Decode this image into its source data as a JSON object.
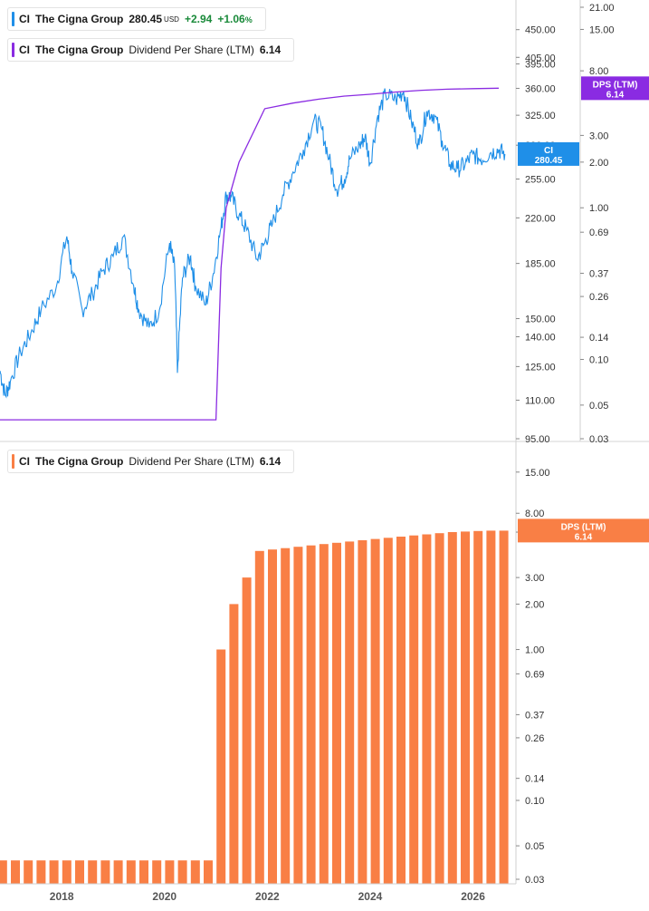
{
  "legend_price": {
    "ticker": "CI",
    "name": "The Cigna Group",
    "price": "280.45",
    "currency": "USD",
    "change": "+2.94",
    "change_pct": "+1.06",
    "pct_sign": "%",
    "color": "#1f8fe8"
  },
  "legend_dps": {
    "ticker": "CI",
    "name": "The Cigna Group",
    "metric": "Dividend Per Share (LTM)",
    "value": "6.14",
    "color": "#8a2be2"
  },
  "legend_dps_bars": {
    "ticker": "CI",
    "name": "The Cigna Group",
    "metric": "Dividend Per Share (LTM)",
    "value": "6.14",
    "color": "#f97f45"
  },
  "chart_data": [
    {
      "type": "line",
      "title": "",
      "xlabel": "",
      "ylabel": "",
      "x_tick_labels": [
        "2018",
        "2020",
        "2022",
        "2024",
        "2026"
      ],
      "xlim": [
        2016.8,
        2026.8
      ],
      "price_axis": {
        "scale": "log",
        "ylim": [
          95,
          490
        ],
        "ticks": [
          "95.00",
          "110.00",
          "125.00",
          "140.00",
          "150.00",
          "185.00",
          "220.00",
          "255.00",
          "290.00",
          "325.00",
          "360.00",
          "395.00",
          "405.00",
          "450.00"
        ]
      },
      "dps_axis": {
        "scale": "log",
        "ylim": [
          0.03,
          21
        ],
        "ticks": [
          "0.03",
          "0.05",
          "0.10",
          "0.14",
          "0.26",
          "0.37",
          "0.69",
          "1.00",
          "2.00",
          "3.00",
          "8.00",
          "15.00",
          "21.00"
        ]
      },
      "series": [
        {
          "name": "CI",
          "axis": "price",
          "color": "#1f8fe8",
          "last_label": "CI",
          "last_value": "280.45",
          "points": [
            [
              2016.8,
              123
            ],
            [
              2016.9,
              112
            ],
            [
              2017.0,
              118
            ],
            [
              2017.2,
              132
            ],
            [
              2017.4,
              142
            ],
            [
              2017.6,
              155
            ],
            [
              2017.9,
              170
            ],
            [
              2018.1,
              205
            ],
            [
              2018.2,
              180
            ],
            [
              2018.4,
              155
            ],
            [
              2018.6,
              165
            ],
            [
              2018.8,
              180
            ],
            [
              2019.0,
              190
            ],
            [
              2019.2,
              205
            ],
            [
              2019.4,
              170
            ],
            [
              2019.5,
              155
            ],
            [
              2019.7,
              145
            ],
            [
              2019.9,
              155
            ],
            [
              2020.1,
              200
            ],
            [
              2020.2,
              180
            ],
            [
              2020.25,
              122
            ],
            [
              2020.35,
              175
            ],
            [
              2020.5,
              190
            ],
            [
              2020.6,
              170
            ],
            [
              2020.8,
              158
            ],
            [
              2020.95,
              178
            ],
            [
              2021.1,
              212
            ],
            [
              2021.2,
              240
            ],
            [
              2021.3,
              238
            ],
            [
              2021.45,
              222
            ],
            [
              2021.6,
              210
            ],
            [
              2021.8,
              188
            ],
            [
              2021.95,
              200
            ],
            [
              2022.1,
              215
            ],
            [
              2022.3,
              240
            ],
            [
              2022.5,
              262
            ],
            [
              2022.7,
              285
            ],
            [
              2022.9,
              318
            ],
            [
              2023.05,
              310
            ],
            [
              2023.2,
              275
            ],
            [
              2023.35,
              245
            ],
            [
              2023.5,
              255
            ],
            [
              2023.6,
              275
            ],
            [
              2023.8,
              290
            ],
            [
              2023.9,
              300
            ],
            [
              2024.0,
              270
            ],
            [
              2024.15,
              325
            ],
            [
              2024.3,
              352
            ],
            [
              2024.5,
              345
            ],
            [
              2024.65,
              356
            ],
            [
              2024.8,
              318
            ],
            [
              2024.95,
              290
            ],
            [
              2025.1,
              330
            ],
            [
              2025.25,
              325
            ],
            [
              2025.4,
              295
            ],
            [
              2025.55,
              270
            ],
            [
              2025.7,
              265
            ],
            [
              2025.85,
              270
            ],
            [
              2026.0,
              280
            ],
            [
              2026.15,
              275
            ],
            [
              2026.35,
              282
            ],
            [
              2026.5,
              285
            ],
            [
              2026.62,
              280.45
            ]
          ]
        },
        {
          "name": "DPS (LTM)",
          "axis": "dps",
          "color": "#8a2be2",
          "last_label": "DPS (LTM)",
          "last_value": "6.14",
          "points": [
            [
              2016.8,
              0.04
            ],
            [
              2021.0,
              0.04
            ],
            [
              2021.1,
              0.4
            ],
            [
              2021.2,
              1.0
            ],
            [
              2021.45,
              2.0
            ],
            [
              2021.7,
              3.0
            ],
            [
              2021.95,
              4.5
            ],
            [
              2022.5,
              4.9
            ],
            [
              2023.0,
              5.2
            ],
            [
              2023.5,
              5.45
            ],
            [
              2024.0,
              5.6
            ],
            [
              2024.5,
              5.8
            ],
            [
              2025.0,
              5.95
            ],
            [
              2025.5,
              6.05
            ],
            [
              2026.0,
              6.1
            ],
            [
              2026.5,
              6.14
            ]
          ]
        }
      ]
    },
    {
      "type": "bar",
      "title": "",
      "xlabel": "",
      "ylabel": "",
      "y_scale": "log",
      "ylim": [
        0.028,
        20
      ],
      "y_ticks": [
        "0.03",
        "0.05",
        "0.10",
        "0.14",
        "0.26",
        "0.37",
        "0.69",
        "1.00",
        "2.00",
        "3.00",
        "6.00",
        "8.00",
        "15.00"
      ],
      "x_tick_labels": [
        "2018",
        "2020",
        "2022",
        "2024",
        "2026"
      ],
      "xlim": [
        2016.8,
        2026.8
      ],
      "series": [
        {
          "name": "DPS (LTM)",
          "color": "#f97f45",
          "last_label": "DPS (LTM)",
          "last_value": "6.14",
          "bars": [
            [
              2016.85,
              0.04
            ],
            [
              2017.1,
              0.04
            ],
            [
              2017.35,
              0.04
            ],
            [
              2017.6,
              0.04
            ],
            [
              2017.85,
              0.04
            ],
            [
              2018.1,
              0.04
            ],
            [
              2018.35,
              0.04
            ],
            [
              2018.6,
              0.04
            ],
            [
              2018.85,
              0.04
            ],
            [
              2019.1,
              0.04
            ],
            [
              2019.35,
              0.04
            ],
            [
              2019.6,
              0.04
            ],
            [
              2019.85,
              0.04
            ],
            [
              2020.1,
              0.04
            ],
            [
              2020.35,
              0.04
            ],
            [
              2020.6,
              0.04
            ],
            [
              2020.85,
              0.04
            ],
            [
              2021.1,
              1.0
            ],
            [
              2021.35,
              2.0
            ],
            [
              2021.6,
              3.0
            ],
            [
              2021.85,
              4.5
            ],
            [
              2022.1,
              4.6
            ],
            [
              2022.35,
              4.7
            ],
            [
              2022.6,
              4.8
            ],
            [
              2022.85,
              4.9
            ],
            [
              2023.1,
              5.0
            ],
            [
              2023.35,
              5.1
            ],
            [
              2023.6,
              5.2
            ],
            [
              2023.85,
              5.3
            ],
            [
              2024.1,
              5.4
            ],
            [
              2024.35,
              5.5
            ],
            [
              2024.6,
              5.6
            ],
            [
              2024.85,
              5.7
            ],
            [
              2025.1,
              5.8
            ],
            [
              2025.35,
              5.9
            ],
            [
              2025.6,
              6.0
            ],
            [
              2025.85,
              6.05
            ],
            [
              2026.1,
              6.1
            ],
            [
              2026.35,
              6.14
            ],
            [
              2026.6,
              6.14
            ]
          ]
        }
      ]
    }
  ]
}
